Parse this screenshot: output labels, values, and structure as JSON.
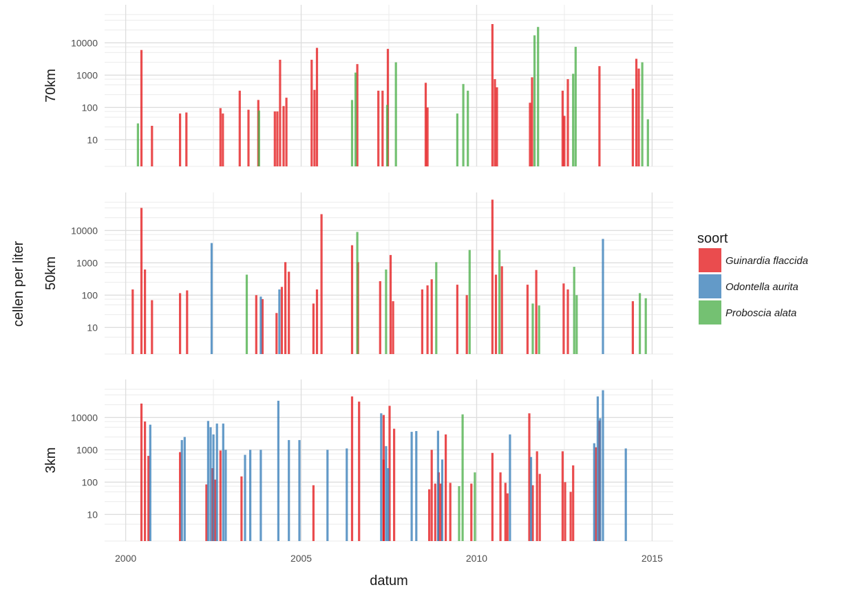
{
  "chart_data": {
    "type": "bar",
    "xlabel": "datum",
    "ylabel": "cellen per liter",
    "x_ticks": [
      "2000",
      "2005",
      "2010",
      "2015"
    ],
    "y_ticks": [
      "10",
      "100",
      "1000",
      "10000"
    ],
    "y_scale": "log10",
    "xlim": [
      1999.4,
      2015.6
    ],
    "ylim": [
      1.5,
      150000
    ],
    "grid": true,
    "legend": {
      "title": "soort",
      "position": "right",
      "entries": [
        {
          "name": "Guinardia flaccida",
          "color": "#e41a1c"
        },
        {
          "name": "Odontella aurita",
          "color": "#377eb8"
        },
        {
          "name": "Proboscia alata",
          "color": "#4daf4a"
        }
      ]
    },
    "panels": [
      {
        "name": "70km",
        "series": [
          {
            "name": "Guinardia flaccida",
            "points": [
              [
                2000.45,
                6000
              ],
              [
                2000.75,
                27
              ],
              [
                2001.55,
                65
              ],
              [
                2001.73,
                70
              ],
              [
                2002.7,
                95
              ],
              [
                2002.77,
                65
              ],
              [
                2003.25,
                330
              ],
              [
                2003.5,
                85
              ],
              [
                2003.78,
                170
              ],
              [
                2004.25,
                75
              ],
              [
                2004.32,
                75
              ],
              [
                2004.4,
                3000
              ],
              [
                2004.5,
                110
              ],
              [
                2004.58,
                200
              ],
              [
                2005.3,
                3000
              ],
              [
                2005.38,
                350
              ],
              [
                2005.45,
                7000
              ],
              [
                2006.6,
                2200
              ],
              [
                2007.2,
                330
              ],
              [
                2007.32,
                330
              ],
              [
                2007.47,
                6500
              ],
              [
                2008.55,
                580
              ],
              [
                2008.6,
                100
              ],
              [
                2010.45,
                38000
              ],
              [
                2010.52,
                750
              ],
              [
                2010.58,
                420
              ],
              [
                2011.52,
                140
              ],
              [
                2011.58,
                860
              ],
              [
                2012.45,
                330
              ],
              [
                2012.5,
                55
              ],
              [
                2012.6,
                750
              ],
              [
                2013.5,
                1900
              ],
              [
                2014.45,
                380
              ],
              [
                2014.55,
                3200
              ],
              [
                2014.62,
                1600
              ]
            ]
          },
          {
            "name": "Proboscia alata",
            "points": [
              [
                2000.35,
                32
              ],
              [
                2003.8,
                80
              ],
              [
                2006.45,
                170
              ],
              [
                2006.55,
                1200
              ],
              [
                2007.45,
                120
              ],
              [
                2007.7,
                2500
              ],
              [
                2009.45,
                65
              ],
              [
                2009.62,
                530
              ],
              [
                2009.75,
                330
              ],
              [
                2011.65,
                17000
              ],
              [
                2011.75,
                31000
              ],
              [
                2012.75,
                1100
              ],
              [
                2012.82,
                7500
              ],
              [
                2014.72,
                2500
              ],
              [
                2014.88,
                43
              ]
            ]
          }
        ]
      },
      {
        "name": "50km",
        "series": [
          {
            "name": "Guinardia flaccida",
            "points": [
              [
                2000.2,
                150
              ],
              [
                2000.45,
                50000
              ],
              [
                2000.55,
                620
              ],
              [
                2000.75,
                70
              ],
              [
                2001.55,
                115
              ],
              [
                2001.75,
                140
              ],
              [
                2003.72,
                100
              ],
              [
                2003.9,
                75
              ],
              [
                2004.3,
                28
              ],
              [
                2004.45,
                180
              ],
              [
                2004.55,
                1050
              ],
              [
                2004.65,
                530
              ],
              [
                2005.35,
                55
              ],
              [
                2005.45,
                150
              ],
              [
                2005.58,
                32000
              ],
              [
                2006.45,
                3500
              ],
              [
                2006.62,
                1050
              ],
              [
                2007.25,
                270
              ],
              [
                2007.55,
                1750
              ],
              [
                2007.62,
                65
              ],
              [
                2008.45,
                150
              ],
              [
                2008.6,
                200
              ],
              [
                2008.72,
                310
              ],
              [
                2009.45,
                210
              ],
              [
                2009.72,
                100
              ],
              [
                2010.45,
                90000
              ],
              [
                2010.55,
                430
              ],
              [
                2010.72,
                780
              ],
              [
                2011.45,
                210
              ],
              [
                2011.7,
                600
              ],
              [
                2012.48,
                230
              ],
              [
                2012.6,
                150
              ],
              [
                2014.45,
                65
              ]
            ]
          },
          {
            "name": "Odontella aurita",
            "points": [
              [
                2002.45,
                4100
              ],
              [
                2004.38,
                150
              ],
              [
                2003.85,
                90
              ],
              [
                2013.6,
                5500
              ]
            ]
          },
          {
            "name": "Proboscia alata",
            "points": [
              [
                2003.45,
                430
              ],
              [
                2006.6,
                9000
              ],
              [
                2007.42,
                620
              ],
              [
                2008.85,
                1050
              ],
              [
                2009.8,
                2500
              ],
              [
                2010.65,
                2500
              ],
              [
                2011.6,
                55
              ],
              [
                2011.78,
                48
              ],
              [
                2012.78,
                750
              ],
              [
                2012.85,
                100
              ],
              [
                2014.65,
                115
              ],
              [
                2014.82,
                80
              ]
            ]
          }
        ]
      },
      {
        "name": "3km",
        "series": [
          {
            "name": "Guinardia flaccida",
            "points": [
              [
                2000.45,
                27000
              ],
              [
                2000.55,
                7500
              ],
              [
                2000.65,
                650
              ],
              [
                2001.55,
                850
              ],
              [
                2002.3,
                85
              ],
              [
                2002.48,
                270
              ],
              [
                2002.55,
                120
              ],
              [
                2002.7,
                950
              ],
              [
                2003.3,
                150
              ],
              [
                2005.35,
                80
              ],
              [
                2006.45,
                45000
              ],
              [
                2006.65,
                31000
              ],
              [
                2007.35,
                12000
              ],
              [
                2007.35,
                500
              ],
              [
                2007.52,
                23000
              ],
              [
                2007.65,
                4500
              ],
              [
                2008.65,
                60
              ],
              [
                2008.72,
                1000
              ],
              [
                2008.82,
                90
              ],
              [
                2008.92,
                200
              ],
              [
                2008.98,
                90
              ],
              [
                2009.12,
                3000
              ],
              [
                2009.25,
                95
              ],
              [
                2009.85,
                90
              ],
              [
                2010.45,
                800
              ],
              [
                2010.68,
                200
              ],
              [
                2010.82,
                95
              ],
              [
                2010.88,
                45
              ],
              [
                2011.5,
                13500
              ],
              [
                2011.6,
                80
              ],
              [
                2011.72,
                900
              ],
              [
                2011.8,
                180
              ],
              [
                2012.45,
                900
              ],
              [
                2012.52,
                100
              ],
              [
                2012.68,
                50
              ],
              [
                2012.75,
                330
              ],
              [
                2013.4,
                1200
              ],
              [
                2013.5,
                8000
              ]
            ]
          },
          {
            "name": "Odontella aurita",
            "points": [
              [
                2000.7,
                6000
              ],
              [
                2001.6,
                2000
              ],
              [
                2001.68,
                2500
              ],
              [
                2002.35,
                7800
              ],
              [
                2002.42,
                5000
              ],
              [
                2002.5,
                3000
              ],
              [
                2002.6,
                6500
              ],
              [
                2002.78,
                6500
              ],
              [
                2002.85,
                1000
              ],
              [
                2003.4,
                700
              ],
              [
                2003.55,
                1000
              ],
              [
                2003.85,
                1000
              ],
              [
                2004.35,
                33000
              ],
              [
                2004.65,
                2000
              ],
              [
                2004.95,
                2000
              ],
              [
                2005.75,
                1000
              ],
              [
                2006.3,
                1100
              ],
              [
                2007.28,
                13500
              ],
              [
                2007.42,
                1300
              ],
              [
                2007.48,
                270
              ],
              [
                2008.15,
                3600
              ],
              [
                2008.28,
                3800
              ],
              [
                2008.9,
                3900
              ],
              [
                2009.02,
                500
              ],
              [
                2010.95,
                3000
              ],
              [
                2011.55,
                600
              ],
              [
                2013.35,
                1600
              ],
              [
                2013.45,
                45000
              ],
              [
                2013.52,
                9500
              ],
              [
                2013.6,
                70000
              ],
              [
                2014.25,
                1100
              ]
            ]
          },
          {
            "name": "Proboscia alata",
            "points": [
              [
                2009.5,
                75
              ],
              [
                2009.6,
                12500
              ],
              [
                2009.95,
                200
              ]
            ]
          }
        ]
      }
    ]
  }
}
